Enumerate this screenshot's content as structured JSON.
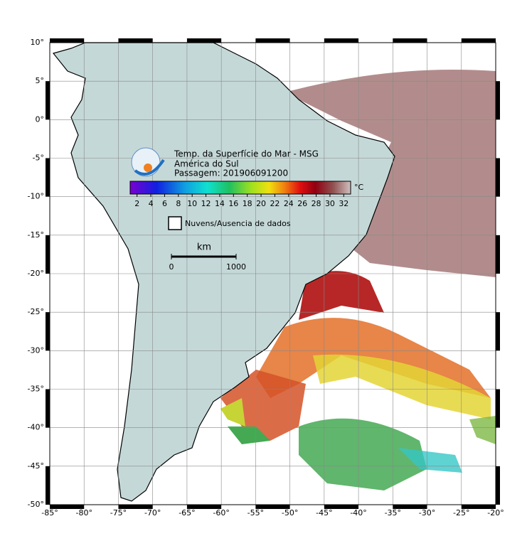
{
  "map": {
    "title": "Temp. da Superfície do Mar - MSG",
    "subtitle": "América do Sul",
    "pass": "Passagem: 201906091200",
    "xlim": [
      -85,
      -20
    ],
    "ylim": [
      -50,
      10
    ],
    "xticks": [
      {
        "value": -85,
        "label": "-85°"
      },
      {
        "value": -80,
        "label": "-80°"
      },
      {
        "value": -75,
        "label": "-75°"
      },
      {
        "value": -70,
        "label": "-70°"
      },
      {
        "value": -65,
        "label": "-65°"
      },
      {
        "value": -60,
        "label": "-60°"
      },
      {
        "value": -55,
        "label": "-55°"
      },
      {
        "value": -50,
        "label": "-50°"
      },
      {
        "value": -45,
        "label": "-45°"
      },
      {
        "value": -40,
        "label": "-40°"
      },
      {
        "value": -35,
        "label": "-35°"
      },
      {
        "value": -30,
        "label": "-30°"
      },
      {
        "value": -25,
        "label": "-25°"
      },
      {
        "value": -20,
        "label": "-20°"
      }
    ],
    "yticks": [
      {
        "value": 10,
        "label": "10°"
      },
      {
        "value": 5,
        "label": "5°"
      },
      {
        "value": 0,
        "label": "0°"
      },
      {
        "value": -5,
        "label": "-5°"
      },
      {
        "value": -10,
        "label": "-10°"
      },
      {
        "value": -15,
        "label": "-15°"
      },
      {
        "value": -20,
        "label": "-20°"
      },
      {
        "value": -25,
        "label": "-25°"
      },
      {
        "value": -30,
        "label": "-30°"
      },
      {
        "value": -35,
        "label": "-35°"
      },
      {
        "value": -40,
        "label": "-40°"
      },
      {
        "value": -45,
        "label": "-45°"
      },
      {
        "value": -50,
        "label": "-50°"
      }
    ],
    "grid": true,
    "colorbar": {
      "unit": "°C",
      "lim": [
        1,
        33
      ],
      "ticks": [
        2,
        4,
        6,
        8,
        10,
        12,
        14,
        16,
        18,
        20,
        22,
        24,
        26,
        28,
        30,
        32
      ]
    },
    "legend": "Nuvens/Ausencia de dados",
    "scale": {
      "label": "km",
      "ticks": [
        0,
        1000
      ]
    }
  }
}
